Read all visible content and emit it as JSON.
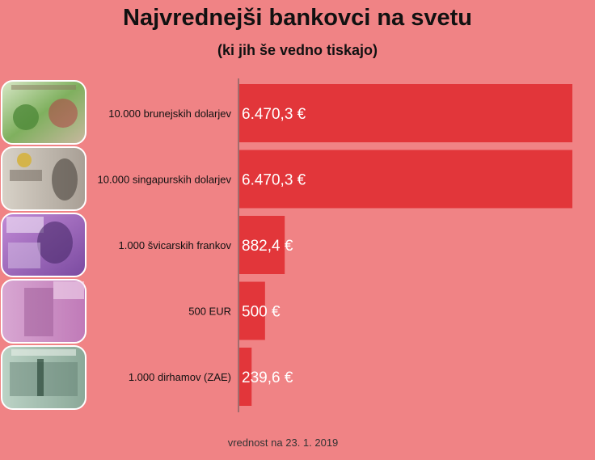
{
  "header": {
    "title": "Najvrednejši bankovci na svetu",
    "subtitle": "(ki jih še vedno tiskajo)"
  },
  "footnote": "vrednost na 23. 1. 2019",
  "colors": {
    "background": "#f08385",
    "bar": "#e2363a",
    "axis": "#555555",
    "value_text": "#ffffff"
  },
  "icons": [
    "brunei-banknote-icon",
    "singapore-banknote-icon",
    "swiss-franc-banknote-icon",
    "euro-banknote-icon",
    "uae-dirham-banknote-icon"
  ],
  "chart_data": {
    "type": "bar",
    "orientation": "horizontal",
    "categories": [
      "10.000 brunejskih dolarjev",
      "10.000 singapurskih dolarjev",
      "1.000 švicarskih frankov",
      "500 EUR",
      "1.000 dirhamov (ZAE)"
    ],
    "values": [
      6470.3,
      6470.3,
      882.4,
      500,
      239.6
    ],
    "value_labels": [
      "6.470,3 €",
      "6.470,3 €",
      "882,4 €",
      "500 €",
      "239,6 €"
    ],
    "xlim": [
      0,
      6800
    ],
    "grid": false,
    "legend": "none"
  }
}
